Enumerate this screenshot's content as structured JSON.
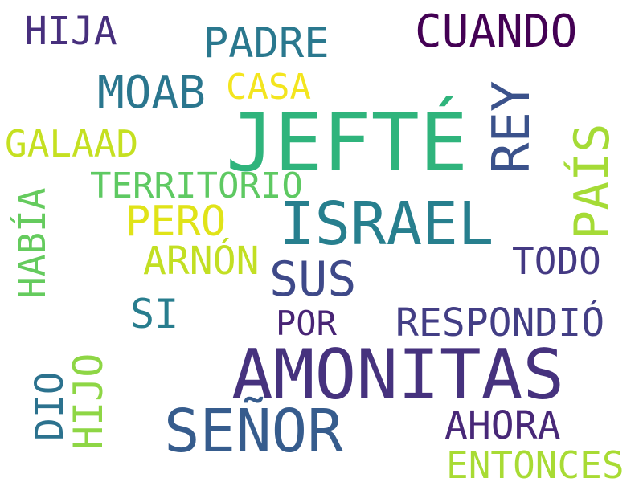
{
  "words": [
    {
      "text": "JEFTÉ",
      "color": "#2fb47c"
    },
    {
      "text": "AMONITAS",
      "color": "#46327e"
    },
    {
      "text": "ISRAEL",
      "color": "#277f8e"
    },
    {
      "text": "SEÑOR",
      "color": "#365c8d"
    },
    {
      "text": "CUANDO",
      "color": "#440154"
    },
    {
      "text": "REY",
      "color": "#3b528b"
    },
    {
      "text": "PAÍS",
      "color": "#a5db36"
    },
    {
      "text": "PADRE",
      "color": "#2a788e"
    },
    {
      "text": "MOAB",
      "color": "#2a768e"
    },
    {
      "text": "SUS",
      "color": "#3e4989"
    },
    {
      "text": "HIJA",
      "color": "#472f7d"
    },
    {
      "text": "CASA",
      "color": "#f3e51e"
    },
    {
      "text": "GALAAD",
      "color": "#c5e021"
    },
    {
      "text": "TERRITORIO",
      "color": "#5ec962"
    },
    {
      "text": "PERO",
      "color": "#e0e318"
    },
    {
      "text": "ARNÓN",
      "color": "#c2df23"
    },
    {
      "text": "HABÍA",
      "color": "#65cb5e"
    },
    {
      "text": "TODO",
      "color": "#443983"
    },
    {
      "text": "SI",
      "color": "#287d8e"
    },
    {
      "text": "POR",
      "color": "#482475"
    },
    {
      "text": "RESPONDIÓ",
      "color": "#433e85"
    },
    {
      "text": "DIO",
      "color": "#2c728e"
    },
    {
      "text": "HIJO",
      "color": "#8ed645"
    },
    {
      "text": "AHORA",
      "color": "#482878"
    },
    {
      "text": "ENTONCES",
      "color": "#a8db34"
    }
  ]
}
